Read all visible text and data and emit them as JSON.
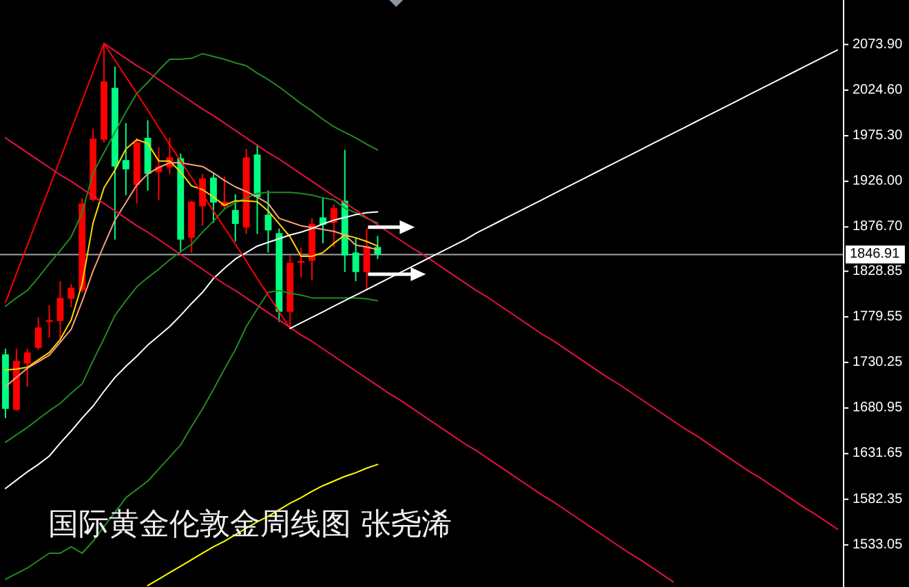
{
  "chart_data": {
    "type": "candlestick",
    "title": "国际黄金伦敦金周线图 张尧浠",
    "categories": [
      null,
      null,
      null,
      null,
      null,
      null,
      null,
      null,
      null,
      null,
      null,
      null,
      null,
      null,
      null,
      null,
      null,
      null,
      null,
      null,
      null,
      null,
      null,
      null,
      null,
      null,
      null,
      null,
      null,
      null,
      null,
      null,
      null,
      null,
      null,
      null,
      null,
      null,
      null,
      null,
      null,
      null,
      null,
      null,
      null,
      null,
      null,
      null,
      null,
      null,
      null,
      null,
      null,
      null,
      null,
      null,
      null,
      null,
      null,
      null,
      null,
      null,
      null,
      null,
      null,
      null,
      null,
      null,
      null,
      null,
      null,
      null,
      null,
      null,
      null,
      null,
      null
    ],
    "ohlc": [
      [
        1739,
        1745,
        1670,
        1680
      ],
      [
        1679,
        1745,
        1678,
        1732
      ],
      [
        1729,
        1745,
        1704,
        1741
      ],
      [
        1746,
        1779,
        1744,
        1768
      ],
      [
        1774,
        1792,
        1757,
        1776
      ],
      [
        1775,
        1818,
        1756,
        1800
      ],
      [
        1799,
        1815,
        1790,
        1811
      ],
      [
        1808,
        1908,
        1806,
        1902
      ],
      [
        1906,
        1983,
        1904,
        1972
      ],
      [
        1971,
        2075,
        1968,
        2034
      ],
      [
        2027,
        2050,
        1863,
        1942
      ],
      [
        1949,
        1989,
        1911,
        1939
      ],
      [
        1922,
        1973,
        1902,
        1968
      ],
      [
        1973,
        1992,
        1916,
        1934
      ],
      [
        1936,
        1963,
        1906,
        1942
      ],
      [
        1941,
        1973,
        1934,
        1952
      ],
      [
        1951,
        1956,
        1849,
        1863
      ],
      [
        1865,
        1905,
        1849,
        1904
      ],
      [
        1899,
        1934,
        1878,
        1929
      ],
      [
        1930,
        1934,
        1881,
        1903
      ],
      [
        1899,
        1931,
        1897,
        1904
      ],
      [
        1895,
        1912,
        1861,
        1880
      ],
      [
        1876,
        1961,
        1869,
        1952
      ],
      [
        1955,
        1966,
        1869,
        1909
      ],
      [
        1890,
        1916,
        1849,
        1873
      ],
      [
        1870,
        1875,
        1774,
        1785
      ],
      [
        1785,
        1846,
        1767,
        1838
      ],
      [
        1838,
        1854,
        1822,
        1840
      ],
      [
        1840,
        1886,
        1819,
        1880
      ],
      [
        1887,
        1908,
        1859,
        1879
      ],
      [
        1881,
        1901,
        1855,
        1897
      ],
      [
        1905,
        1960,
        1828,
        1846
      ],
      [
        1849,
        1865,
        1818,
        1828
      ],
      [
        1828,
        1875,
        1808,
        1856
      ],
      [
        1855,
        1867,
        1842,
        1847
      ],
      null,
      null,
      null,
      null,
      null,
      null,
      null,
      null,
      null,
      null,
      null,
      null,
      null,
      null,
      null,
      null,
      null,
      null,
      null,
      null,
      null,
      null,
      null,
      null,
      null,
      null,
      null,
      null,
      null,
      null,
      null,
      null,
      null,
      null,
      null,
      null,
      null,
      null,
      null,
      null,
      null,
      null
    ],
    "colors": [
      "#00ff80",
      "#ff0000",
      "#ff0000",
      "#ff0000",
      "#ff0000",
      "#ff0000",
      "#ff0000",
      "#ff0000",
      "#ff0000",
      "#ff0000",
      "#00ff80",
      "#00ff80",
      "#ff0000",
      "#00ff80",
      "#ff0000",
      "#ff0000",
      "#00ff80",
      "#ff0000",
      "#ff0000",
      "#00ff80",
      "#ff0000",
      "#00ff80",
      "#ff0000",
      "#00ff80",
      "#00ff80",
      "#00ff80",
      "#ff0000",
      "#ff0000",
      "#ff0000",
      "#00ff80",
      "#ff0000",
      "#00ff80",
      "#00ff80",
      "#ff0000",
      "#00ff80",
      null,
      null,
      null,
      null,
      null,
      null,
      null,
      null,
      null,
      null,
      null,
      null,
      null,
      null,
      null,
      null,
      null,
      null,
      null,
      null,
      null,
      null,
      null,
      null,
      null,
      null,
      null,
      null,
      null,
      null,
      null,
      null,
      null,
      null,
      null,
      null,
      null,
      null,
      null,
      null,
      null,
      null
    ],
    "series": [
      {
        "type": "line",
        "color": "#228b22",
        "values": [
          1791,
          1800,
          1808,
          1822,
          1837,
          1851,
          1866,
          1892,
          1935,
          1957,
          1979,
          2001,
          2021,
          2033,
          2046,
          2058,
          2058,
          2059,
          2064,
          2061,
          2058,
          2054,
          2051,
          2043,
          2036,
          2028,
          2019,
          2010,
          2002,
          1993,
          1985,
          1979,
          1973,
          1966,
          1960,
          null,
          null,
          null,
          null,
          null,
          null,
          null,
          null,
          null,
          null,
          null,
          null,
          null,
          null,
          null,
          null,
          null,
          null,
          null,
          null,
          null,
          null,
          null,
          null,
          null,
          null,
          null,
          null,
          null,
          null,
          null,
          null,
          null,
          null,
          null,
          null,
          null,
          null,
          null,
          null,
          null,
          null
        ]
      },
      {
        "type": "line",
        "color": "#228b22",
        "values": [
          1644,
          1652,
          1660,
          1669,
          1678,
          1686,
          1697,
          1707,
          1732,
          1756,
          1781,
          1797,
          1812,
          1822,
          1831,
          1841,
          1850,
          1858,
          1871,
          1883,
          1896,
          1903,
          1908,
          1913,
          1914,
          1914,
          1914,
          1913,
          1911,
          1908,
          1906,
          1897,
          1892,
          1886,
          1881,
          null,
          null,
          null,
          null,
          null,
          null,
          null,
          null,
          null,
          null,
          null,
          null,
          null,
          null,
          null,
          null,
          null,
          null,
          null,
          null,
          null,
          null,
          null,
          null,
          null,
          null,
          null,
          null,
          null,
          null,
          null,
          null,
          null,
          null,
          null,
          null,
          null,
          null,
          null,
          null,
          null,
          null
        ]
      },
      {
        "type": "line",
        "color": "#228b22",
        "values": [
          1496,
          1502,
          1508,
          1516,
          1524,
          1524,
          1531,
          1524,
          1537,
          1553,
          1568,
          1584,
          1593,
          1602,
          1615,
          1628,
          1641,
          1661,
          1680,
          1701,
          1723,
          1744,
          1769,
          1788,
          1806,
          1808,
          1805,
          1803,
          1800,
          1800,
          1800,
          1800,
          1800,
          1799,
          1797,
          null,
          null,
          null,
          null,
          null,
          null,
          null,
          null,
          null,
          null,
          null,
          null,
          null,
          null,
          null,
          null,
          null,
          null,
          null,
          null,
          null,
          null,
          null,
          null,
          null,
          null,
          null,
          null,
          null,
          null,
          null,
          null,
          null,
          null,
          null,
          null,
          null,
          null,
          null,
          null,
          null,
          null
        ]
      },
      {
        "type": "line",
        "color": "#ffd700",
        "values": [
          1722,
          1723,
          1725,
          1733,
          1741,
          1755,
          1776,
          1815,
          1881,
          1919,
          1938,
          1961,
          1971,
          1967,
          1948,
          1948,
          1936,
          1921,
          1917,
          1909,
          1900,
          1905,
          1905,
          1904,
          1894,
          1880,
          1866,
          1845,
          1845,
          1849,
          1859,
          1868,
          1865,
          1861,
          1856,
          null,
          null,
          null,
          null,
          null,
          null,
          null,
          null,
          null,
          null,
          null,
          null,
          null,
          null,
          null,
          null,
          null,
          null,
          null,
          null,
          null,
          null,
          null,
          null,
          null,
          null,
          null,
          null,
          null,
          null,
          null,
          null,
          null,
          null,
          null,
          null,
          null,
          null,
          null,
          null,
          null,
          null
        ]
      },
      {
        "type": "line",
        "color": "#ffa07a",
        "values": [
          1704,
          1714,
          1724,
          1731,
          1738,
          1752,
          1766,
          1796,
          1829,
          1857,
          1884,
          1903,
          1922,
          1934,
          1941,
          1946,
          1946,
          1944,
          1942,
          1935,
          1927,
          1920,
          1915,
          1909,
          1902,
          1886,
          1882,
          1878,
          1876,
          1874,
          1872,
          1868,
          1857,
          1855,
          1852,
          null,
          null,
          null,
          null,
          null,
          null,
          null,
          null,
          null,
          null,
          null,
          null,
          null,
          null,
          null,
          null,
          null,
          null,
          null,
          null,
          null,
          null,
          null,
          null,
          null,
          null,
          null,
          null,
          null,
          null,
          null,
          null,
          null,
          null,
          null,
          null,
          null,
          null,
          null,
          null,
          null,
          null
        ]
      },
      {
        "type": "line",
        "color": "#ffffff",
        "values": [
          1594,
          1603,
          1612,
          1620,
          1629,
          1643,
          1656,
          1670,
          1683,
          1699,
          1714,
          1726,
          1737,
          1749,
          1759,
          1769,
          1781,
          1794,
          1806,
          1821,
          1832,
          1842,
          1849,
          1856,
          1860,
          1864,
          1868,
          1871,
          1875,
          1880,
          1884,
          1887,
          1890,
          1892,
          1893,
          null,
          null,
          null,
          null,
          null,
          null,
          null,
          null,
          null,
          null,
          null,
          null,
          null,
          null,
          null,
          null,
          null,
          null,
          null,
          null,
          null,
          null,
          null,
          null,
          null,
          null,
          null,
          null,
          null,
          null,
          null,
          null,
          null,
          null,
          null,
          null,
          null,
          null,
          null,
          null,
          null,
          null
        ]
      },
      {
        "type": "line",
        "color": "#ffff00",
        "values": [
          null,
          null,
          null,
          null,
          null,
          null,
          null,
          null,
          null,
          null,
          null,
          null,
          null,
          1489,
          1496,
          1503,
          1510,
          1517,
          1524,
          1531,
          1537,
          1544,
          1551,
          1558,
          1564,
          1571,
          1578,
          1584,
          1591,
          1597,
          1602,
          1607,
          1611,
          1616,
          1620,
          null,
          null,
          null,
          null,
          null,
          null,
          null,
          null,
          null,
          null,
          null,
          null,
          null,
          null,
          null,
          null,
          null,
          null,
          null,
          null,
          null,
          null,
          null,
          null,
          null,
          null,
          null,
          null,
          null,
          null,
          null,
          null,
          null,
          null,
          null,
          null,
          null,
          null,
          null,
          null,
          null,
          null
        ]
      },
      {
        "type": "line",
        "color": "#ff0000",
        "values": [
          1795,
          1826,
          1857,
          1888,
          1919,
          1950,
          1982,
          2013,
          2044,
          2075,
          null,
          null,
          null,
          null,
          null,
          null,
          null,
          null,
          null,
          null,
          null,
          null,
          null,
          null,
          null,
          null,
          null,
          null,
          null,
          null,
          null,
          null,
          null,
          null,
          null,
          null,
          null,
          null,
          null,
          null,
          null,
          null,
          null,
          null,
          null,
          null,
          null,
          null,
          null,
          null,
          null,
          null,
          null,
          null,
          null,
          null,
          null,
          null,
          null,
          null,
          null,
          null,
          null,
          null,
          null,
          null,
          null,
          null,
          null,
          null,
          null,
          null,
          null,
          null,
          null,
          null,
          null
        ]
      },
      {
        "type": "line",
        "color": "#ff0000",
        "values": [
          null,
          null,
          null,
          null,
          null,
          null,
          null,
          null,
          null,
          2075,
          2057,
          2039,
          2021,
          2003,
          1984,
          1966,
          1948,
          1930,
          1912,
          1894,
          1876,
          1858,
          1840,
          1821,
          1803,
          1785,
          1767,
          null,
          null,
          null,
          null,
          null,
          null,
          null,
          null,
          null,
          null,
          null,
          null,
          null,
          null,
          null,
          null,
          null,
          null,
          null,
          null,
          null,
          null,
          null,
          null,
          null,
          null,
          null,
          null,
          null,
          null,
          null,
          null,
          null,
          null,
          null,
          null,
          null,
          null,
          null,
          null,
          null,
          null,
          null,
          null,
          null,
          null,
          null,
          null,
          null,
          null
        ]
      },
      {
        "type": "line",
        "color": "#e8103c",
        "values": [
          null,
          null,
          null,
          null,
          null,
          null,
          null,
          null,
          null,
          2075,
          2067,
          2059,
          2051,
          2044,
          2036,
          2028,
          2020,
          2012,
          2004,
          1997,
          1989,
          1981,
          1973,
          1965,
          1957,
          1950,
          1942,
          1934,
          1926,
          1918,
          1910,
          1903,
          1895,
          1887,
          1879,
          1871,
          1863,
          1855,
          1848,
          1840,
          1832,
          1824,
          1816,
          1808,
          1801,
          1793,
          1785,
          1777,
          1769,
          1761,
          1754,
          1746,
          1738,
          1730,
          1722,
          1714,
          1707,
          1699,
          1691,
          1683,
          1675,
          1667,
          1659,
          1652,
          1644,
          1636,
          1628,
          1620,
          1612,
          1605,
          1597,
          1589,
          1581,
          1573,
          1566,
          1558,
          1550
        ]
      },
      {
        "type": "line",
        "color": "#e8103c",
        "values": [
          1973,
          1965,
          1957,
          1949,
          1941,
          1933,
          1926,
          1918,
          1910,
          1902,
          1894,
          1886,
          1878,
          1871,
          1863,
          1855,
          1847,
          1839,
          1831,
          1823,
          1815,
          1808,
          1800,
          1792,
          1784,
          1776,
          1768,
          1760,
          1753,
          1745,
          1737,
          1729,
          1721,
          1713,
          1705,
          1697,
          1690,
          1682,
          1674,
          1666,
          1658,
          1650,
          1642,
          1635,
          1627,
          1619,
          1611,
          1603,
          1595,
          1587,
          1580,
          1572,
          1564,
          1556,
          1548,
          1540,
          1532,
          1524,
          1517,
          1509,
          1501,
          1493,
          null,
          null,
          null,
          null,
          null,
          null,
          null,
          null,
          null,
          null,
          null,
          null,
          null,
          null,
          null
        ]
      },
      {
        "type": "line",
        "color": "#ffffff",
        "values": [
          null,
          null,
          null,
          null,
          null,
          null,
          null,
          null,
          null,
          null,
          null,
          null,
          null,
          null,
          null,
          null,
          null,
          null,
          null,
          null,
          null,
          null,
          null,
          null,
          null,
          null,
          1767,
          1773,
          1779,
          1785,
          1791,
          1797,
          1803,
          1809,
          1815,
          1821,
          1827,
          1833,
          1839,
          1845,
          1851,
          1857,
          1863,
          1870,
          1876,
          1882,
          1888,
          1894,
          1900,
          1906,
          1912,
          1918,
          1924,
          1930,
          1936,
          1942,
          1948,
          1954,
          1960,
          1966,
          1972,
          1978,
          1984,
          1990,
          1996,
          2002,
          2008,
          2014,
          2020,
          2026,
          2032,
          2038,
          2044,
          2050,
          2056,
          2062,
          2068
        ]
      }
    ],
    "ylim": [
      1487.5,
      2122
    ],
    "yticks": [
      {
        "value": 2073.9,
        "label": "2073.90"
      },
      {
        "value": 2024.6,
        "label": "2024.60"
      },
      {
        "value": 1975.3,
        "label": "1975.30"
      },
      {
        "value": 1926,
        "label": "1926.00"
      },
      {
        "value": 1876.7,
        "label": "1876.70"
      },
      1828.85,
      1779.55,
      1730.25,
      1680.95,
      1631.65,
      1582.35,
      1533.05
    ],
    "tick_labels": "y",
    "ref_lines": [
      {
        "axis": "y",
        "value": 1846.91,
        "label": "1846.91",
        "color": "#a0a4ac"
      }
    ]
  }
}
